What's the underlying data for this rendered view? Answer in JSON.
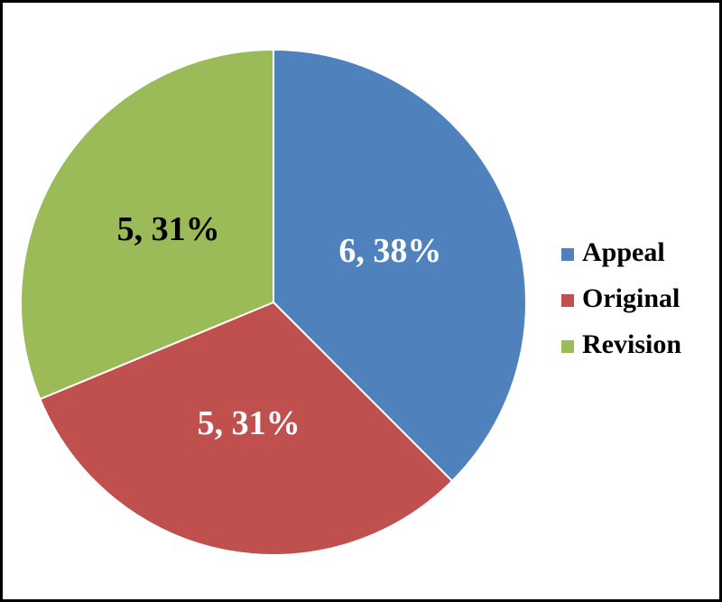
{
  "chart_data": {
    "type": "pie",
    "categories": [
      "Appeal",
      "Original",
      "Revision"
    ],
    "values": [
      6,
      5,
      5
    ],
    "value_labels": [
      "6, 38%",
      "5, 31%",
      "5, 31%"
    ],
    "colors": [
      "#4f81bd",
      "#c0504d",
      "#9bbb59"
    ],
    "value_label_colors": [
      "#ffffff",
      "#ffffff",
      "#000000"
    ],
    "legend": "right"
  }
}
